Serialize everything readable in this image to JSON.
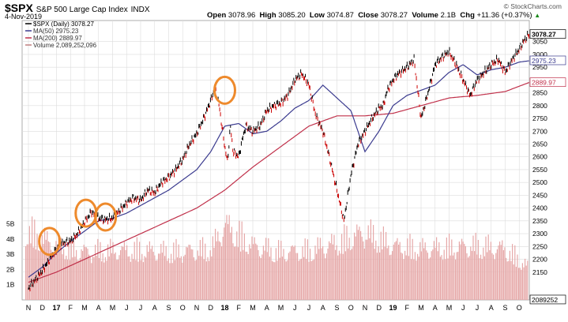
{
  "header": {
    "symbol": "$SPX",
    "name": "S&P 500 Large Cap Index",
    "exchange": "INDX",
    "date": "4-Nov-2019",
    "open_label": "Open",
    "open": "3078.96",
    "high_label": "High",
    "high": "3085.20",
    "low_label": "Low",
    "low": "3074.87",
    "close_label": "Close",
    "close": "3078.27",
    "volume_label": "Volume",
    "volume": "2.1B",
    "chg_label": "Chg",
    "chg": "+11.36 (+0.37%)",
    "up_glyph": "▲",
    "watermark": "© StockCharts.com"
  },
  "legend": [
    {
      "text": "$SPX (Daily) 3078.27",
      "color": "#000000"
    },
    {
      "text": "MA(50) 2975.23",
      "color": "#3b3b8f"
    },
    {
      "text": "MA(200) 2889.97",
      "color": "#c0304a"
    },
    {
      "text": "Volume 2,089,252,096",
      "color": "#c08080"
    }
  ],
  "colors": {
    "price": "#000000",
    "down": "#cc0000",
    "ma50": "#3b3b8f",
    "ma200": "#c0304a",
    "vol": "#e6a8a8",
    "grid": "#dcdcdc",
    "circle": "#ee8a2c"
  },
  "chart_data": {
    "type": "line",
    "title": "$SPX S&P 500 Large Cap Index INDX",
    "xlabel": "",
    "ylabel": "",
    "ylim": [
      2140,
      3120
    ],
    "x_tick_labels": [
      "N",
      "D",
      "17",
      "F",
      "M",
      "A",
      "M",
      "J",
      "J",
      "A",
      "S",
      "O",
      "N",
      "D",
      "18",
      "F",
      "M",
      "A",
      "M",
      "J",
      "J",
      "A",
      "S",
      "O",
      "N",
      "D",
      "19",
      "F",
      "M",
      "A",
      "M",
      "J",
      "J",
      "A",
      "S",
      "O",
      "N"
    ],
    "bold_tick_labels": [
      "17",
      "18",
      "19"
    ],
    "y_ticks": [
      2150,
      2200,
      2250,
      2300,
      2350,
      2400,
      2450,
      2500,
      2550,
      2600,
      2650,
      2700,
      2750,
      2800,
      2850,
      2900,
      2950,
      3000,
      3050
    ],
    "y_tick_labels": [
      "2150",
      "2200",
      "2250",
      "2300",
      "2350",
      "2400",
      "2450",
      "2500",
      "2550",
      "2600",
      "2650",
      "2700",
      "2750",
      "2800",
      "2850",
      "2900",
      "2950",
      "3000",
      "3050"
    ],
    "price_tags": [
      {
        "text": "3078.27",
        "value": 3078.27,
        "fill": "#ffffff",
        "color": "#000000",
        "bold": true
      },
      {
        "text": "2975.23",
        "value": 2975.23,
        "fill": "#ffffff",
        "color": "#3b3b8f",
        "bold": false
      },
      {
        "text": "2889.97",
        "value": 2889.97,
        "fill": "#ffffff",
        "color": "#c0304a",
        "bold": false
      },
      {
        "text": "2089252",
        "value": 2089252,
        "fill": "#ffffff",
        "color": "#000000",
        "bold": false,
        "panel": "volume"
      }
    ],
    "volume_axis_labels": [
      "1B",
      "2B",
      "3B",
      "4B",
      "5B"
    ],
    "volume_ticks_billions": [
      1,
      2,
      3,
      4,
      5
    ],
    "series": [
      {
        "name": "$SPX (Daily)",
        "x": [
          0.0,
          1.0,
          1.5,
          2.0,
          2.5,
          3.0,
          3.5,
          4.0,
          4.5,
          5.0,
          5.5,
          6.0,
          6.5,
          7.0,
          7.5,
          8.0,
          8.5,
          9.0,
          9.5,
          10.0,
          10.5,
          11.0,
          11.5,
          12.0,
          12.5,
          13.0,
          13.3,
          13.6,
          14.0,
          14.2,
          14.4,
          14.6,
          15.0,
          15.3,
          15.5,
          16.0,
          16.5,
          17.0,
          17.5,
          18.0,
          18.5,
          19.0,
          19.5,
          20.0,
          20.5,
          21.0,
          21.5,
          22.0,
          22.5,
          23.0,
          23.5,
          24.0,
          24.5,
          25.0,
          25.3,
          25.6,
          26.0,
          26.3,
          27.0,
          27.5,
          28.0,
          28.5,
          29.0,
          29.5,
          30.0,
          30.5,
          31.0,
          31.5,
          32.0,
          32.5,
          33.0,
          33.5,
          34.0,
          34.5,
          35.0,
          35.3,
          35.7
        ],
        "values": [
          2085,
          2155,
          2200,
          2240,
          2265,
          2270,
          2300,
          2345,
          2385,
          2360,
          2355,
          2360,
          2390,
          2420,
          2440,
          2430,
          2470,
          2460,
          2500,
          2520,
          2550,
          2590,
          2650,
          2690,
          2750,
          2820,
          2870,
          2800,
          2640,
          2580,
          2720,
          2620,
          2600,
          2680,
          2720,
          2700,
          2720,
          2780,
          2800,
          2810,
          2840,
          2900,
          2925,
          2880,
          2760,
          2700,
          2590,
          2470,
          2350,
          2530,
          2650,
          2700,
          2750,
          2790,
          2800,
          2860,
          2900,
          2920,
          2950,
          2980,
          2750,
          2850,
          2960,
          2990,
          3010,
          2960,
          2900,
          2840,
          2900,
          2930,
          2960,
          2980,
          2930,
          2980,
          3020,
          3050,
          3078
        ]
      },
      {
        "name": "MA(50)",
        "x": [
          0.0,
          1.0,
          2.0,
          3.0,
          4.0,
          5.0,
          6.0,
          7.0,
          8.0,
          9.0,
          10.0,
          11.0,
          12.0,
          13.0,
          14.0,
          15.0,
          16.0,
          17.0,
          18.0,
          19.0,
          20.0,
          21.0,
          22.0,
          23.0,
          24.0,
          25.0,
          26.0,
          27.0,
          28.0,
          29.0,
          30.0,
          31.0,
          32.0,
          33.0,
          34.0,
          35.0,
          35.7
        ],
        "values": [
          2130,
          2170,
          2225,
          2270,
          2310,
          2350,
          2360,
          2380,
          2410,
          2440,
          2470,
          2510,
          2550,
          2620,
          2720,
          2730,
          2690,
          2700,
          2740,
          2790,
          2820,
          2880,
          2830,
          2780,
          2620,
          2700,
          2800,
          2840,
          2860,
          2880,
          2930,
          2960,
          2920,
          2940,
          2950,
          2970,
          2975
        ]
      },
      {
        "name": "MA(200)",
        "x": [
          0.0,
          2.0,
          4.0,
          6.0,
          8.0,
          10.0,
          12.0,
          14.0,
          16.0,
          18.0,
          20.0,
          22.0,
          24.0,
          26.0,
          28.0,
          30.0,
          32.0,
          34.0,
          35.7
        ],
        "values": [
          2110,
          2150,
          2200,
          2250,
          2300,
          2350,
          2400,
          2470,
          2560,
          2640,
          2720,
          2760,
          2760,
          2770,
          2800,
          2830,
          2840,
          2855,
          2890
        ]
      }
    ],
    "volume": {
      "name": "Volume",
      "x": [
        0.1,
        2.0,
        4.0,
        6.0,
        8.0,
        10.0,
        12.0,
        13.0,
        14.0,
        16.0,
        18.0,
        20.0,
        22.0,
        23.0,
        24.0,
        26.0,
        28.0,
        30.0,
        32.0,
        34.0,
        35.7
      ],
      "values_billions": [
        4.5,
        3.6,
        3.2,
        3.3,
        3.3,
        3.2,
        3.3,
        3.4,
        5.0,
        3.6,
        3.2,
        3.3,
        3.8,
        4.2,
        4.5,
        3.6,
        3.4,
        3.5,
        3.6,
        3.4,
        2.1
      ]
    }
  },
  "annotations": [
    {
      "type": "circle",
      "x_month": 1.5,
      "value": 2270
    },
    {
      "type": "circle",
      "x_month": 4.1,
      "value": 2380
    },
    {
      "type": "circle",
      "x_month": 5.5,
      "value": 2365
    },
    {
      "type": "circle",
      "x_month": 14.0,
      "value": 2860
    }
  ]
}
